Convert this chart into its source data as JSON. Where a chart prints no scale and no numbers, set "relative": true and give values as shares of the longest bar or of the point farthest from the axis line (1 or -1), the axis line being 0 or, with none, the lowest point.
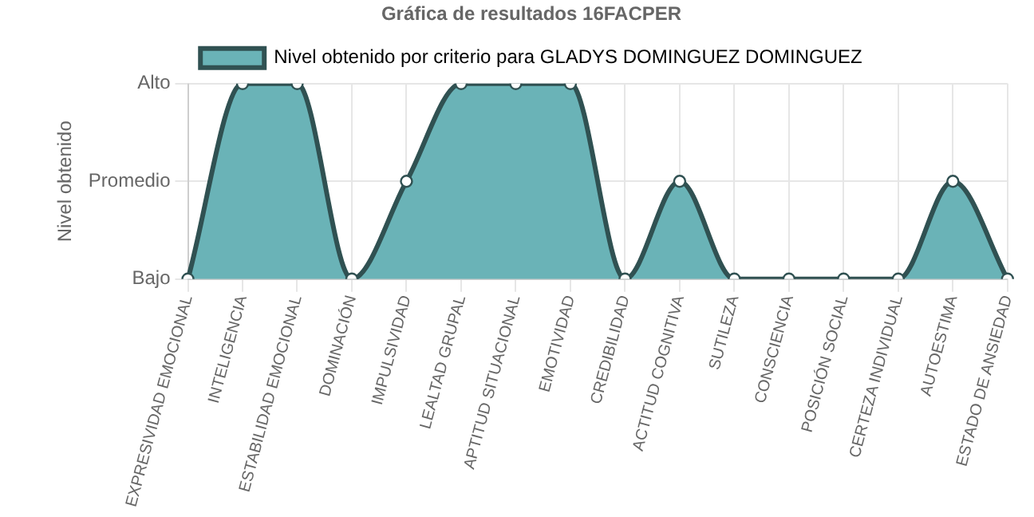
{
  "chart_data": {
    "type": "area",
    "title": "Gráfica de resultados 16FACPER",
    "ylabel": "Nivel obtenido",
    "relative": true,
    "categories": [
      "EXPRESIVIDAD EMOCIONAL",
      "INTELIGENCIA",
      "ESTABILIDAD EMOCIONAL",
      "DOMINACIÓN",
      "IMPULSIVIDAD",
      "LEALTAD GRUPAL",
      "APTITUD SITUACIONAL",
      "EMOTIVIDAD",
      "CREDIBILIDAD",
      "ACTITUD COGNITIVA",
      "SUTILEZA",
      "CONSCIENCIA",
      "POSICIÓN SOCIAL",
      "CERTEZA INDIVIDUAL",
      "AUTOESTIMA",
      "ESTADO DE ANSIEDAD"
    ],
    "series": [
      {
        "name": "Nivel obtenido por criterio para GLADYS DOMINGUEZ DOMINGUEZ",
        "color": "#6ab3b7",
        "values": [
          0,
          1,
          1,
          0,
          0.5,
          1,
          1,
          1,
          0,
          0.5,
          0,
          0,
          0,
          0,
          0.5,
          0
        ]
      }
    ],
    "annotations": [
      "Bajo",
      "Promedio",
      "Alto"
    ],
    "grid": true,
    "legend": "top",
    "marker": "circle"
  }
}
